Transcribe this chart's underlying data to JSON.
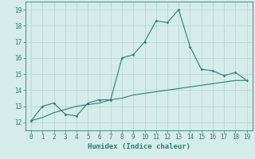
{
  "xlabel": "Humidex (Indice chaleur)",
  "line1_x": [
    0,
    1,
    2,
    3,
    4,
    5,
    6,
    7,
    8,
    9,
    10,
    11,
    12,
    13,
    14,
    15,
    16,
    17,
    18,
    19
  ],
  "line1_y": [
    12.1,
    13.0,
    13.2,
    12.5,
    12.4,
    13.2,
    13.4,
    13.4,
    16.0,
    16.2,
    17.0,
    18.3,
    18.2,
    19.0,
    16.7,
    15.3,
    15.2,
    14.9,
    15.1,
    14.6
  ],
  "line2_x": [
    0,
    1,
    2,
    3,
    4,
    5,
    6,
    7,
    8,
    9,
    10,
    11,
    12,
    13,
    14,
    15,
    16,
    17,
    18,
    19
  ],
  "line2_y": [
    12.1,
    12.3,
    12.6,
    12.8,
    13.0,
    13.1,
    13.2,
    13.4,
    13.5,
    13.7,
    13.8,
    13.9,
    14.0,
    14.1,
    14.2,
    14.3,
    14.4,
    14.5,
    14.6,
    14.6
  ],
  "line_color": "#2e7d72",
  "bg_color": "#d4ecea",
  "grid_color": "#b8d8d5",
  "xlim": [
    -0.5,
    19.5
  ],
  "ylim": [
    11.5,
    19.5
  ],
  "yticks": [
    12,
    13,
    14,
    15,
    16,
    17,
    18,
    19
  ],
  "xticks": [
    0,
    1,
    2,
    3,
    4,
    5,
    6,
    7,
    8,
    9,
    10,
    11,
    12,
    13,
    14,
    15,
    16,
    17,
    18,
    19
  ],
  "tick_fontsize": 5.5,
  "xlabel_fontsize": 6.5
}
